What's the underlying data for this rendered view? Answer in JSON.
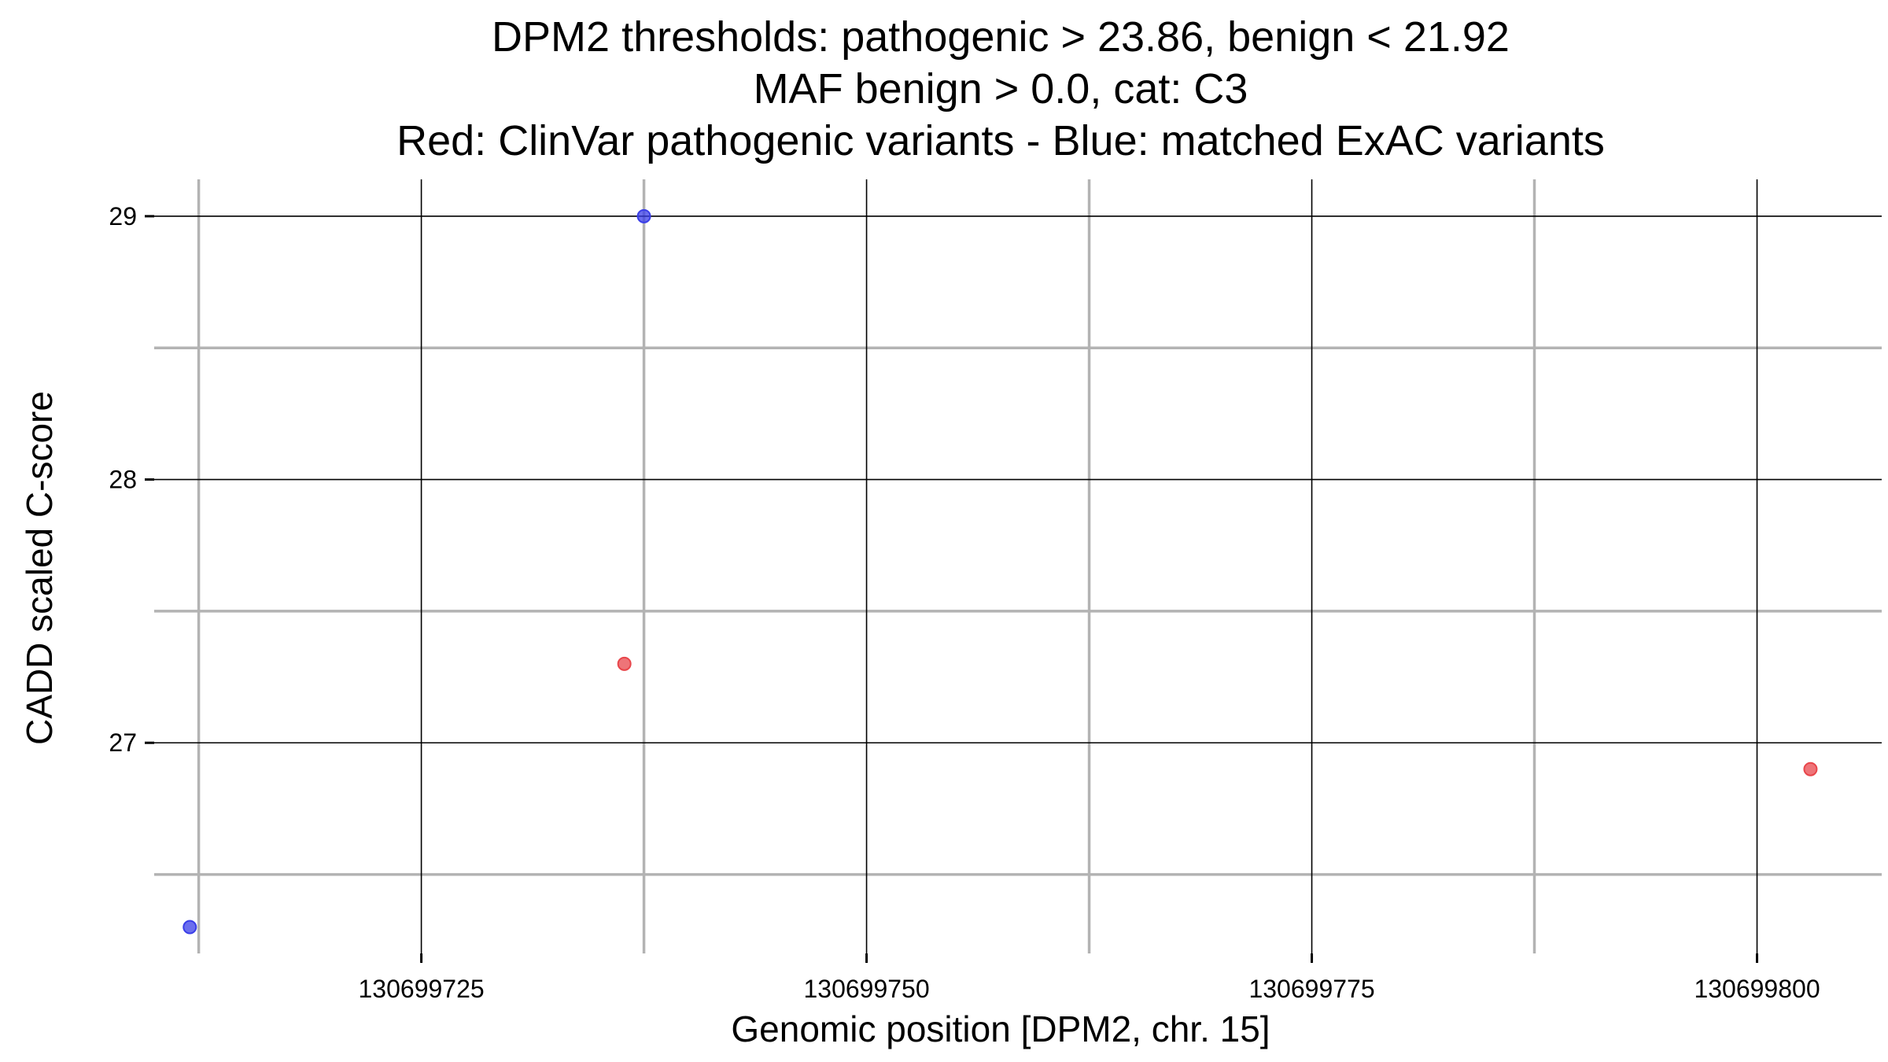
{
  "chart_data": {
    "type": "scatter",
    "title_lines": [
      "DPM2 thresholds: pathogenic > 23.86, benign < 21.92",
      "MAF benign > 0.0, cat: C3",
      "Red: ClinVar pathogenic variants - Blue: matched ExAC variants"
    ],
    "xlabel": "Genomic position [DPM2, chr. 15]",
    "ylabel": "CADD scaled C-score",
    "xlim": [
      130699710,
      130699807
    ],
    "ylim": [
      26.2,
      29.14
    ],
    "x_major_ticks": [
      130699725,
      130699750,
      130699775,
      130699800
    ],
    "x_tick_labels": [
      "130699725",
      "130699750",
      "130699775",
      "130699800"
    ],
    "x_minor_ticks": [
      130699712.5,
      130699737.5,
      130699762.5,
      130699787.5
    ],
    "y_major_ticks": [
      27,
      28,
      29
    ],
    "y_tick_labels": [
      "27",
      "28",
      "29"
    ],
    "y_minor_ticks": [
      26.5,
      27.5,
      28.5
    ],
    "grid": true,
    "series": [
      {
        "color": "#e8464b",
        "points": [
          {
            "x": 130699736.4,
            "y": 27.3
          },
          {
            "x": 130699803.0,
            "y": 26.9
          }
        ]
      },
      {
        "color": "#3a3ee8",
        "points": [
          {
            "x": 130699712.0,
            "y": 26.3
          },
          {
            "x": 130699737.5,
            "y": 29.0
          }
        ]
      }
    ]
  }
}
